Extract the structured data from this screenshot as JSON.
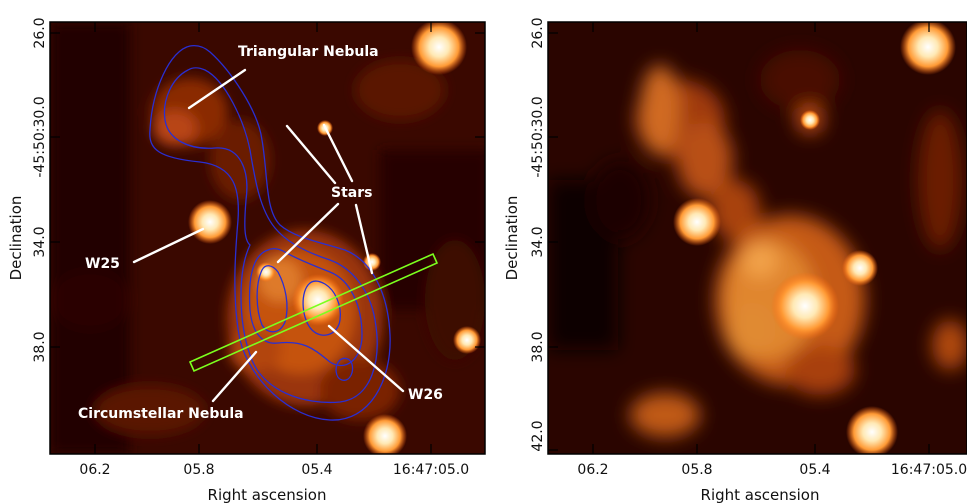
{
  "left_panel": {
    "xlabel": "Right ascension",
    "ylabel": "Declination",
    "x_ticks": [
      "06.2",
      "05.8",
      "05.4",
      "16:47:05.0"
    ],
    "y_ticks": [
      "26.0",
      "-45:50:30.0",
      "34.0",
      "38.0"
    ],
    "labels": {
      "triangular": "Triangular Nebula",
      "stars": "Stars",
      "w25": "W25",
      "w26": "W26",
      "circumstellar": "Circumstellar Nebula"
    },
    "colors": {
      "contour": "#2a2fd2",
      "slit": "#7cff1e",
      "annotation": "#ffffff"
    }
  },
  "right_panel": {
    "xlabel": "Right ascension",
    "ylabel": "Declination",
    "x_ticks": [
      "06.2",
      "05.8",
      "05.4",
      "16:47:05.0"
    ],
    "y_ticks": [
      "26.0",
      "-45:50:30.0",
      "34.0",
      "38.0",
      "42.0"
    ]
  },
  "colormap": [
    "#000000",
    "#5a1200",
    "#b53b00",
    "#ff8a2a",
    "#ffe0a0",
    "#ffffff"
  ]
}
